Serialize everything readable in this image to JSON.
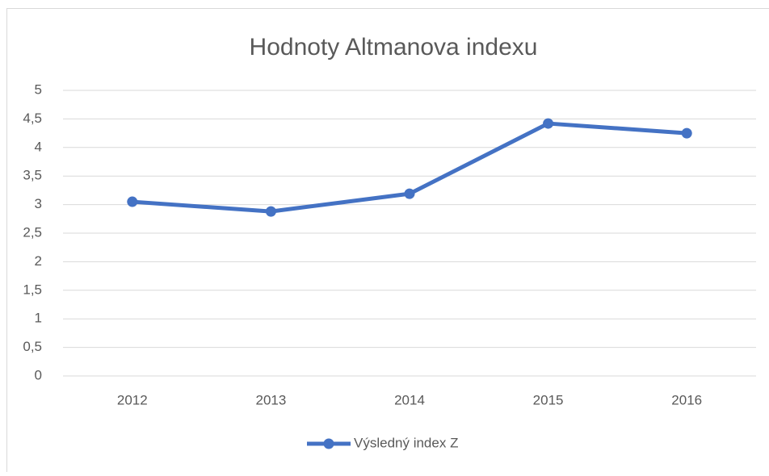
{
  "chart_data": {
    "type": "line",
    "title": "Hodnoty Altmanova indexu",
    "categories": [
      "2012",
      "2013",
      "2014",
      "2015",
      "2016"
    ],
    "series": [
      {
        "name": "Výsledný index Z",
        "color": "#4472c4",
        "values": [
          3.05,
          2.88,
          3.19,
          4.42,
          4.25
        ]
      }
    ],
    "ylim": [
      0,
      5
    ],
    "yticks": [
      0,
      {
        "value": 0.5,
        "label": "0,5"
      },
      1,
      {
        "value": 1.5,
        "label": "1,5"
      },
      2,
      {
        "value": 2.5,
        "label": "2,5"
      },
      3,
      {
        "value": 3.5,
        "label": "3,5"
      },
      4,
      {
        "value": 4.5,
        "label": "4,5"
      },
      5
    ],
    "grid": true,
    "legend": "bottom"
  }
}
